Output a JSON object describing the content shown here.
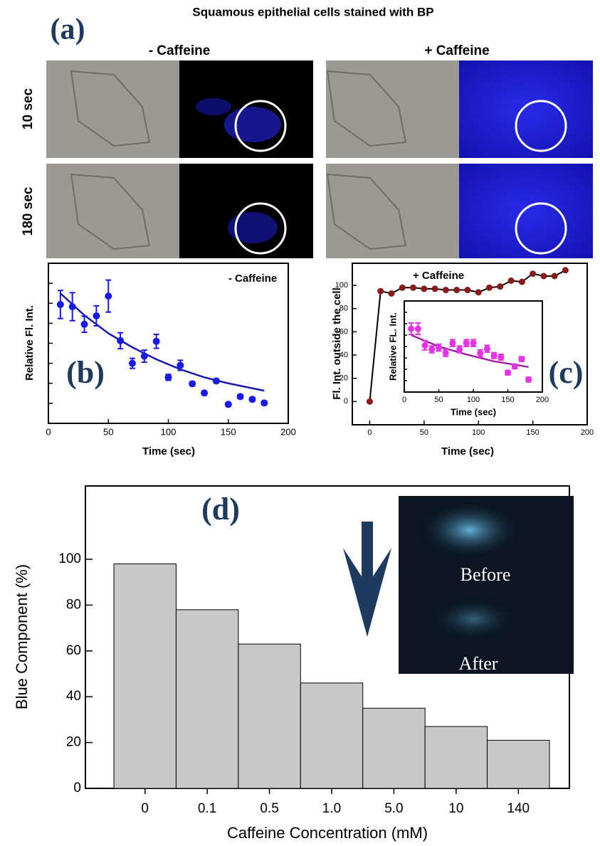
{
  "figure": {
    "title": "Squamous epithelial cells stained with BP",
    "panel_label": "(a)",
    "columns": [
      "- Caffeine",
      "+ Caffeine"
    ],
    "rows": [
      "10 sec",
      "180 sec"
    ],
    "inset_labels": [
      "Before",
      "After"
    ]
  },
  "chart_data": [
    {
      "type": "scatter",
      "panel_label": "(b)",
      "annotation": "- Caffeine",
      "xlabel": "Time (sec)",
      "ylabel": "Relative Fl. Int.",
      "x": [
        10,
        20,
        30,
        40,
        50,
        60,
        70,
        80,
        90,
        100,
        110,
        120,
        130,
        140,
        150,
        160,
        170,
        180
      ],
      "series": [
        {
          "color": "#1a1ae6",
          "values": [
            5.94,
            5.83,
            4.95,
            5.37,
            6.36,
            4.13,
            3.0,
            3.36,
            4.1,
            2.3,
            2.9,
            1.98,
            1.52,
            2.12,
            0.95,
            1.34,
            1.2,
            1.02
          ],
          "errors": [
            0.7,
            0.7,
            0.4,
            0.5,
            0.8,
            0.4,
            0.25,
            0.3,
            0.35,
            0.15,
            0.25,
            0.1,
            0.1,
            0.1,
            0.1,
            0.1,
            0.1,
            0.1
          ]
        }
      ],
      "fit": {
        "color": "#1a1aa8",
        "x": [
          10,
          30,
          50,
          70,
          90,
          110,
          130,
          150,
          180
        ],
        "values": [
          6.5,
          5.4,
          4.5,
          3.8,
          3.2,
          2.7,
          2.3,
          2.0,
          1.63
        ]
      },
      "xlim": [
        0,
        200
      ],
      "xticks": [
        0,
        50,
        100,
        150,
        200
      ],
      "ylim": [
        0,
        8
      ],
      "yticks": [
        0,
        1,
        2,
        3,
        4,
        5,
        6,
        7,
        8
      ],
      "ytick_labels": false
    },
    {
      "type": "scatter",
      "panel_label": "(c)",
      "annotation": "+ Caffeine",
      "xlabel": "Time (sec)",
      "ylabel": "Fl. Int. outside the cell",
      "line": true,
      "x": [
        0,
        10,
        20,
        30,
        40,
        50,
        60,
        70,
        80,
        90,
        100,
        110,
        120,
        130,
        140,
        150,
        160,
        170,
        180
      ],
      "series": [
        {
          "color": "#8b1a1a",
          "values": [
            0,
            95,
            93,
            98,
            98,
            97,
            97,
            96,
            96,
            96,
            94,
            98,
            99,
            104,
            103,
            110,
            108,
            108,
            113
          ]
        }
      ],
      "xlim": [
        -16,
        200
      ],
      "xticks": [
        0,
        50,
        100,
        150,
        200
      ],
      "ylim": [
        -20,
        119
      ],
      "yticks": [
        0,
        20,
        40,
        60,
        80,
        100
      ]
    },
    {
      "type": "scatter",
      "xlabel": "Time (sec)",
      "ylabel": "Relative FL. Int.",
      "x": [
        10,
        20,
        30,
        40,
        50,
        60,
        70,
        80,
        90,
        100,
        110,
        120,
        130,
        140,
        150,
        160,
        170,
        180
      ],
      "series": [
        {
          "color": "#e632e6",
          "values": [
            5.56,
            5.56,
            4.1,
            3.75,
            3.9,
            3.44,
            4.3,
            3.75,
            4.3,
            4.3,
            3.4,
            3.8,
            3.2,
            3.06,
            1.7,
            2.25,
            2.9,
            1.1
          ],
          "errors": [
            0.5,
            0.5,
            0.4,
            0.3,
            0.3,
            0.3,
            0.3,
            0.3,
            0.3,
            0.3,
            0.3,
            0.3,
            0.25,
            0.25,
            0.2,
            0.2,
            0.2,
            0.2
          ]
        }
      ],
      "fit": {
        "color": "#a020a0",
        "x": [
          10,
          50,
          90,
          130,
          180
        ],
        "values": [
          5.0,
          4.0,
          3.3,
          2.7,
          2.2
        ]
      },
      "xlim": [
        0,
        200
      ],
      "xticks": [
        0,
        50,
        100,
        150,
        200
      ],
      "ylim": [
        0,
        8
      ],
      "yticks": [
        1,
        2,
        3,
        4,
        5,
        6,
        7
      ],
      "ytick_labels": false
    },
    {
      "type": "bar",
      "panel_label": "(d)",
      "xlabel": "Caffeine Concentration (mM)",
      "ylabel": "Blue Component (%)",
      "color": "#c8c8c8",
      "categories": [
        "0",
        "0.1",
        "0.5",
        "1.0",
        "5.0",
        "10",
        "140"
      ],
      "values": [
        98,
        78,
        63,
        46,
        35,
        27,
        21
      ],
      "ylim": [
        0,
        132
      ],
      "yticks": [
        0,
        20,
        40,
        60,
        80,
        100
      ]
    }
  ]
}
